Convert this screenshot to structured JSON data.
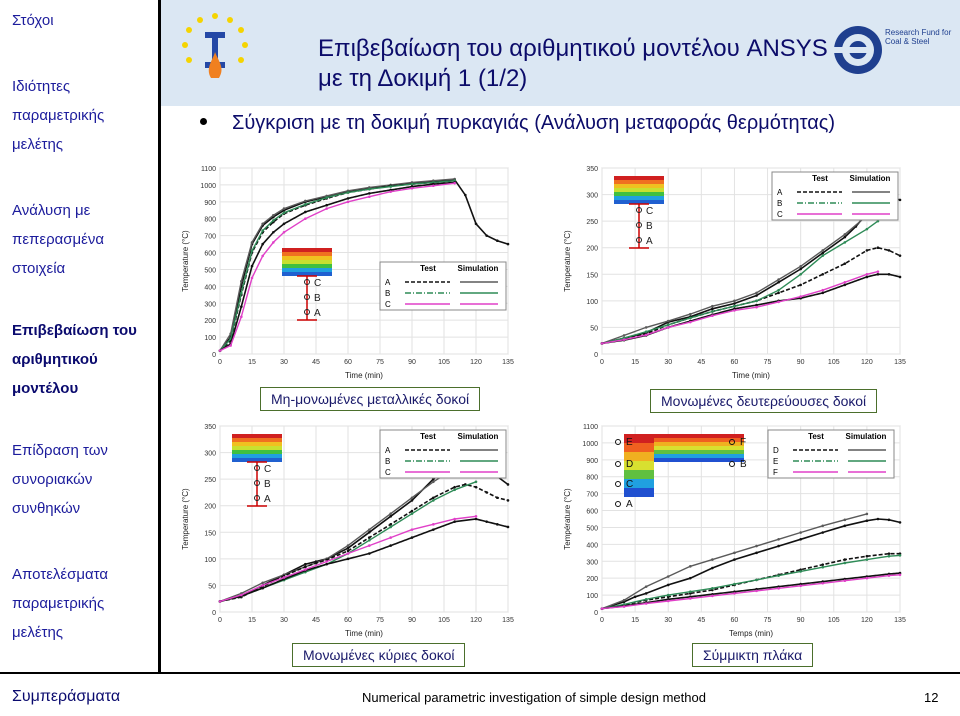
{
  "sidebar": {
    "items": [
      {
        "label": "Στόχοι"
      },
      {
        "label": "Ιδιότητες παραμετρικής μελέτης"
      },
      {
        "label": "Ανάλυση με πεπερασμένα στοιχεία"
      },
      {
        "label": "Επιβεβαίωση του αριθμητικού μοντέλου"
      },
      {
        "label": "Επίδραση των συνοριακών συνθηκών"
      },
      {
        "label": "Αποτελέσματα παραμετρικής μελέτης"
      }
    ],
    "footer_label": "Συμπεράσματα"
  },
  "header": {
    "title": "Επιβεβαίωση του αριθμητικού μοντέλου ANSYS με τη Δοκιμή 1 (1/2)",
    "bullet": "Σύγκριση με τη δοκιμή πυρκαγιάς (Ανάλυση μεταφοράς θερμότητας)",
    "logo_text_right": "Research Fund for Coal & Steel"
  },
  "footer": {
    "center": "Numerical parametric investigation of simple design method",
    "page": "12"
  },
  "colors": {
    "test": "#111111",
    "sim_a": "#5a5a5a",
    "sim_b": "#2e8b57",
    "sim_c": "#e040c8",
    "accent": "#0c0c6a"
  },
  "chart_data": [
    {
      "type": "line",
      "caption": "Μη-μονωμένες μεταλλικές δοκοί",
      "xlabel": "Time (min)",
      "ylabel": "Temperature (°C)",
      "xlim": [
        0,
        135
      ],
      "ylim": [
        0,
        1100
      ],
      "xticks": [
        0,
        15,
        30,
        45,
        60,
        75,
        90,
        105,
        120,
        135
      ],
      "yticks": [
        0,
        100,
        200,
        300,
        400,
        500,
        600,
        700,
        800,
        900,
        1000,
        1100
      ],
      "legend": {
        "headers": [
          "Test",
          "Simulation"
        ],
        "rows": [
          "A",
          "B",
          "C"
        ]
      },
      "section_labels": [
        "C",
        "B",
        "A"
      ],
      "series": [
        {
          "name": "A",
          "kind": "test",
          "x": [
            0,
            5,
            10,
            15,
            20,
            25,
            30,
            40,
            50,
            60,
            70,
            80,
            90,
            100,
            110,
            115,
            120,
            125,
            130,
            135
          ],
          "y": [
            20,
            100,
            400,
            650,
            760,
            810,
            850,
            900,
            930,
            960,
            980,
            995,
            1010,
            1020,
            1030,
            940,
            770,
            700,
            670,
            650
          ]
        },
        {
          "name": "A",
          "kind": "sim",
          "x": [
            0,
            5,
            10,
            15,
            20,
            25,
            30,
            40,
            50,
            60,
            70,
            80,
            90,
            100,
            110
          ],
          "y": [
            20,
            120,
            430,
            660,
            770,
            820,
            860,
            905,
            935,
            965,
            985,
            1000,
            1015,
            1025,
            1035
          ]
        },
        {
          "name": "B",
          "kind": "test",
          "x": [
            0,
            5,
            10,
            15,
            20,
            25,
            30,
            40,
            50,
            60,
            70,
            80,
            90,
            100,
            110
          ],
          "y": [
            20,
            80,
            350,
            600,
            720,
            780,
            830,
            880,
            920,
            955,
            975,
            995,
            1005,
            1015,
            1025
          ]
        },
        {
          "name": "B",
          "kind": "sim",
          "x": [
            0,
            5,
            10,
            15,
            20,
            25,
            30,
            40,
            50,
            60,
            70,
            80,
            90,
            100,
            110
          ],
          "y": [
            20,
            90,
            360,
            610,
            730,
            790,
            835,
            885,
            925,
            955,
            975,
            990,
            1005,
            1015,
            1025
          ]
        },
        {
          "name": "C",
          "kind": "test",
          "x": [
            0,
            5,
            10,
            15,
            20,
            25,
            30,
            40,
            50,
            60,
            70,
            80,
            90,
            100,
            110
          ],
          "y": [
            20,
            60,
            280,
            520,
            650,
            720,
            770,
            840,
            880,
            920,
            950,
            970,
            990,
            1005,
            1015
          ]
        },
        {
          "name": "C",
          "kind": "sim",
          "x": [
            0,
            5,
            10,
            15,
            20,
            25,
            30,
            40,
            50,
            60,
            70,
            80,
            90,
            100,
            110
          ],
          "y": [
            20,
            50,
            220,
            450,
            580,
            660,
            720,
            800,
            860,
            900,
            930,
            960,
            980,
            995,
            1010
          ]
        }
      ]
    },
    {
      "type": "line",
      "caption": "Μονωμένες δευτερεύουσες δοκοί",
      "xlabel": "Time (min)",
      "ylabel": "Temperature (°C)",
      "xlim": [
        0,
        135
      ],
      "ylim": [
        0,
        350
      ],
      "xticks": [
        0,
        15,
        30,
        45,
        60,
        75,
        90,
        105,
        120,
        135
      ],
      "yticks": [
        0,
        50,
        100,
        150,
        200,
        250,
        300,
        350
      ],
      "legend": {
        "headers": [
          "Test",
          "Simulation"
        ],
        "rows": [
          "A",
          "B",
          "C"
        ]
      },
      "section_labels": [
        "C",
        "B",
        "A"
      ],
      "series": [
        {
          "name": "A",
          "kind": "test",
          "x": [
            0,
            10,
            20,
            30,
            40,
            50,
            60,
            70,
            80,
            90,
            100,
            110,
            115,
            120,
            125,
            130,
            135
          ],
          "y": [
            20,
            30,
            40,
            60,
            70,
            85,
            95,
            110,
            135,
            160,
            190,
            220,
            240,
            265,
            285,
            295,
            290
          ]
        },
        {
          "name": "A",
          "kind": "sim",
          "x": [
            0,
            10,
            20,
            30,
            40,
            50,
            60,
            70,
            80,
            90,
            100,
            110,
            120,
            125
          ],
          "y": [
            20,
            35,
            50,
            62,
            75,
            90,
            100,
            115,
            140,
            165,
            195,
            225,
            260,
            290
          ]
        },
        {
          "name": "B",
          "kind": "test",
          "x": [
            0,
            10,
            20,
            30,
            40,
            50,
            60,
            70,
            80,
            90,
            100,
            110,
            120,
            125,
            130,
            135
          ],
          "y": [
            20,
            28,
            38,
            55,
            68,
            80,
            90,
            100,
            115,
            130,
            150,
            170,
            195,
            200,
            195,
            185
          ]
        },
        {
          "name": "B",
          "kind": "sim",
          "x": [
            0,
            10,
            20,
            30,
            40,
            50,
            60,
            70,
            80,
            90,
            100,
            110,
            120,
            125
          ],
          "y": [
            20,
            30,
            42,
            55,
            68,
            80,
            90,
            100,
            120,
            150,
            185,
            210,
            235,
            250
          ]
        },
        {
          "name": "C",
          "kind": "test",
          "x": [
            0,
            10,
            20,
            30,
            40,
            50,
            60,
            70,
            80,
            90,
            100,
            110,
            120,
            125,
            130,
            135
          ],
          "y": [
            20,
            26,
            35,
            50,
            62,
            74,
            85,
            92,
            100,
            105,
            115,
            130,
            145,
            150,
            150,
            145
          ]
        },
        {
          "name": "C",
          "kind": "sim",
          "x": [
            0,
            10,
            20,
            30,
            40,
            50,
            60,
            70,
            80,
            90,
            100,
            110,
            120,
            125
          ],
          "y": [
            20,
            27,
            36,
            50,
            60,
            72,
            82,
            88,
            98,
            108,
            120,
            135,
            150,
            155
          ]
        }
      ]
    },
    {
      "type": "line",
      "caption": "Μονωμένες κύριες δοκοί",
      "xlabel": "Time (min)",
      "ylabel": "Temperature (°C)",
      "xlim": [
        0,
        135
      ],
      "ylim": [
        0,
        350
      ],
      "xticks": [
        0,
        15,
        30,
        45,
        60,
        75,
        90,
        105,
        120,
        135
      ],
      "yticks": [
        0,
        50,
        100,
        150,
        200,
        250,
        300,
        350
      ],
      "legend": {
        "headers": [
          "Test",
          "Simulation"
        ],
        "rows": [
          "A",
          "B",
          "C"
        ]
      },
      "section_labels": [
        "C",
        "B",
        "A"
      ],
      "series": [
        {
          "name": "A",
          "kind": "test",
          "x": [
            0,
            10,
            20,
            30,
            40,
            45,
            50,
            60,
            70,
            80,
            90,
            100,
            110,
            115,
            120,
            125,
            130,
            135
          ],
          "y": [
            20,
            30,
            50,
            70,
            90,
            95,
            100,
            120,
            150,
            180,
            210,
            250,
            280,
            290,
            285,
            270,
            255,
            240
          ]
        },
        {
          "name": "A",
          "kind": "sim",
          "x": [
            0,
            10,
            20,
            30,
            40,
            50,
            60,
            70,
            80,
            90,
            100,
            110,
            120
          ],
          "y": [
            20,
            35,
            55,
            70,
            85,
            100,
            125,
            155,
            185,
            215,
            245,
            270,
            290
          ]
        },
        {
          "name": "B",
          "kind": "test",
          "x": [
            0,
            10,
            20,
            30,
            40,
            45,
            50,
            60,
            70,
            80,
            90,
            100,
            110,
            115,
            120,
            125,
            130,
            135
          ],
          "y": [
            20,
            28,
            48,
            68,
            85,
            92,
            98,
            115,
            140,
            165,
            190,
            215,
            235,
            240,
            235,
            225,
            215,
            210
          ]
        },
        {
          "name": "B",
          "kind": "sim",
          "x": [
            0,
            10,
            20,
            30,
            40,
            50,
            60,
            70,
            80,
            90,
            100,
            110,
            120
          ],
          "y": [
            20,
            30,
            45,
            60,
            75,
            90,
            110,
            135,
            160,
            185,
            210,
            230,
            245
          ]
        },
        {
          "name": "C",
          "kind": "test",
          "x": [
            0,
            10,
            20,
            30,
            40,
            50,
            60,
            70,
            80,
            90,
            100,
            110,
            120,
            125,
            130,
            135
          ],
          "y": [
            20,
            30,
            45,
            62,
            78,
            90,
            100,
            110,
            125,
            140,
            155,
            170,
            175,
            170,
            165,
            160
          ]
        },
        {
          "name": "C",
          "kind": "sim",
          "x": [
            0,
            10,
            20,
            30,
            40,
            50,
            60,
            70,
            80,
            90,
            100,
            110,
            120
          ],
          "y": [
            20,
            32,
            50,
            65,
            80,
            95,
            110,
            125,
            140,
            155,
            165,
            175,
            180
          ]
        }
      ]
    },
    {
      "type": "line",
      "caption": "Σύμμικτη πλάκα",
      "xlabel": "Temps (min)",
      "ylabel": "Température (°C)",
      "xlim": [
        0,
        135
      ],
      "ylim": [
        0,
        1100
      ],
      "xticks": [
        0,
        15,
        30,
        45,
        60,
        75,
        90,
        105,
        120,
        135
      ],
      "yticks": [
        0,
        100,
        200,
        300,
        400,
        500,
        600,
        700,
        800,
        900,
        1000,
        1100
      ],
      "legend": {
        "headers": [
          "Test",
          "Simulation"
        ],
        "rows": [
          "D",
          "E",
          "F"
        ]
      },
      "section_labels": [
        "E",
        "D",
        "C",
        "A",
        "F",
        "B"
      ],
      "series": [
        {
          "name": "D",
          "kind": "test",
          "x": [
            0,
            5,
            10,
            15,
            20,
            30,
            40,
            50,
            60,
            70,
            80,
            90,
            100,
            110,
            120,
            125,
            130,
            135
          ],
          "y": [
            20,
            40,
            60,
            90,
            110,
            160,
            200,
            260,
            310,
            350,
            390,
            430,
            470,
            510,
            540,
            550,
            545,
            530
          ]
        },
        {
          "name": "D",
          "kind": "sim",
          "x": [
            0,
            10,
            20,
            30,
            40,
            50,
            60,
            70,
            80,
            90,
            100,
            110,
            120
          ],
          "y": [
            20,
            70,
            150,
            210,
            270,
            310,
            350,
            390,
            430,
            470,
            510,
            545,
            580
          ]
        },
        {
          "name": "E",
          "kind": "test",
          "x": [
            0,
            10,
            20,
            30,
            40,
            50,
            60,
            70,
            80,
            90,
            100,
            110,
            120,
            130,
            135
          ],
          "y": [
            20,
            40,
            70,
            90,
            110,
            130,
            160,
            190,
            220,
            250,
            280,
            310,
            330,
            345,
            345
          ]
        },
        {
          "name": "E",
          "kind": "sim",
          "x": [
            0,
            10,
            20,
            30,
            40,
            50,
            60,
            70,
            80,
            90,
            100,
            110,
            120,
            130,
            135
          ],
          "y": [
            20,
            45,
            75,
            100,
            120,
            140,
            165,
            190,
            215,
            240,
            265,
            290,
            310,
            330,
            335
          ]
        },
        {
          "name": "F",
          "kind": "test",
          "x": [
            0,
            10,
            20,
            30,
            40,
            50,
            60,
            70,
            80,
            90,
            100,
            110,
            120,
            130,
            135
          ],
          "y": [
            20,
            35,
            55,
            75,
            90,
            105,
            120,
            135,
            150,
            165,
            180,
            195,
            210,
            225,
            230
          ]
        },
        {
          "name": "F",
          "kind": "sim",
          "x": [
            0,
            10,
            20,
            30,
            40,
            50,
            60,
            70,
            80,
            90,
            100,
            110,
            120,
            130,
            135
          ],
          "y": [
            20,
            32,
            50,
            65,
            80,
            95,
            110,
            125,
            140,
            155,
            170,
            185,
            200,
            215,
            220
          ]
        }
      ]
    }
  ]
}
